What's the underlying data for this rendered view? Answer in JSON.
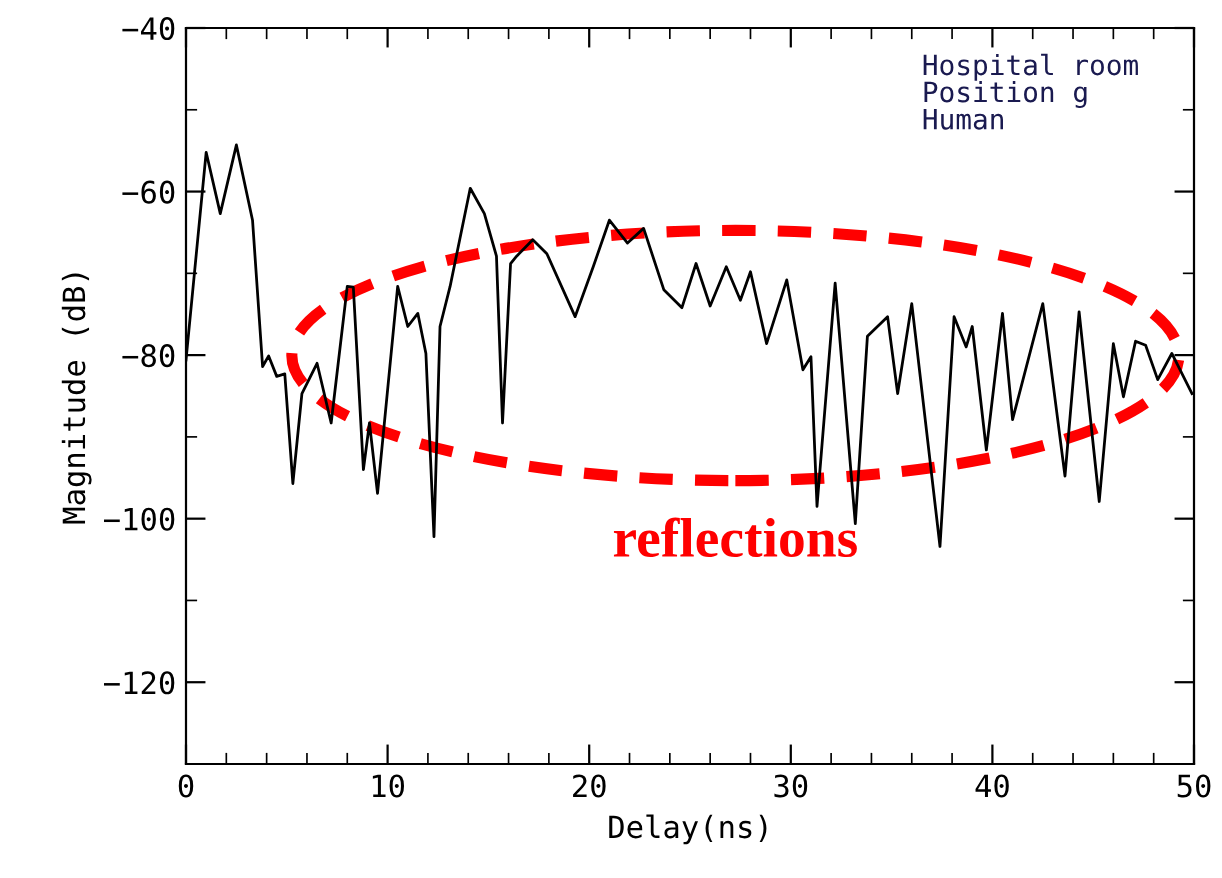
{
  "chart_data": {
    "type": "line",
    "xlabel": "Delay(ns)",
    "ylabel": "Magnitude (dB)",
    "annotations": [
      "Hospital room",
      "Position g",
      "Human",
      "reflections"
    ],
    "xlim": [
      0,
      50
    ],
    "ylim": [
      -130,
      -40
    ],
    "xticks": [
      0,
      10,
      20,
      30,
      40,
      50
    ],
    "yticks": [
      -120,
      -100,
      -80,
      -60,
      -40
    ],
    "grid": false,
    "legend": false,
    "series": [
      {
        "color": "#000000",
        "x": [
          0,
          1.0,
          1.7,
          2.5,
          3.3,
          3.8,
          4.1,
          4.5,
          4.9,
          5.3,
          5.75,
          6.5,
          7.2,
          8.0,
          8.3,
          8.8,
          9.1,
          9.5,
          10.5,
          11.0,
          11.5,
          11.9,
          12.3,
          12.6,
          13.1,
          14.1,
          14.8,
          15.4,
          15.7,
          16.1,
          16.4,
          17.2,
          17.9,
          19.3,
          20.2,
          21.0,
          21.9,
          22.7,
          23.7,
          24.6,
          25.3,
          26.0,
          26.8,
          27.5,
          28.0,
          28.8,
          29.8,
          30.6,
          31.0,
          31.3,
          32.2,
          33.2,
          33.8,
          34.8,
          35.3,
          36.0,
          37.4,
          38.1,
          38.7,
          39.0,
          39.7,
          40.5,
          41.0,
          42.5,
          43.6,
          44.3,
          45.3,
          46.0,
          46.5,
          47.1,
          47.6,
          48.2,
          48.9,
          49.9
        ],
        "values": [
          -80.6,
          -55.2,
          -62.7,
          -54.3,
          -63.5,
          -81.4,
          -80.1,
          -82.6,
          -82.3,
          -95.7,
          -84.7,
          -81,
          -88.3,
          -71.6,
          -71.7,
          -94,
          -88.3,
          -96.9,
          -71.6,
          -76.5,
          -74.9,
          -79.8,
          -102.2,
          -76.5,
          -71.6,
          -59.6,
          -62.7,
          -67.9,
          -88.3,
          -68.8,
          -67.9,
          -65.9,
          -67.6,
          -75.3,
          -69.2,
          -63.5,
          -66.3,
          -64.5,
          -72,
          -74.2,
          -68.8,
          -74,
          -69.2,
          -73.3,
          -69.8,
          -78.6,
          -70.8,
          -81.8,
          -80.2,
          -98.5,
          -71.2,
          -100.6,
          -77.7,
          -75.3,
          -84.7,
          -73.7,
          -103.4,
          -75.3,
          -79,
          -76.5,
          -91.6,
          -74.9,
          -87.9,
          -73.7,
          -94.8,
          -74.7,
          -97.9,
          -78.6,
          -85.1,
          -78.3,
          -78.8,
          -83,
          -79.8,
          -84.7
        ]
      }
    ]
  }
}
